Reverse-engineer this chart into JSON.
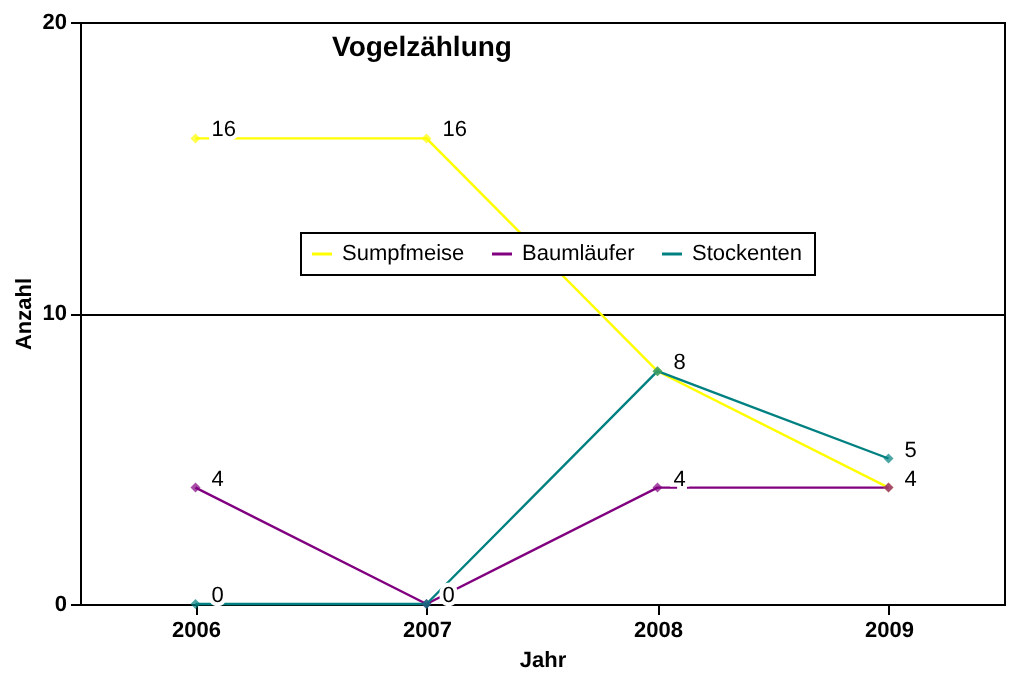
{
  "chart_data": {
    "type": "line",
    "title": "Vogelzählung",
    "xlabel": "Jahr",
    "ylabel": "Anzahl",
    "categories": [
      "2006",
      "2007",
      "2008",
      "2009"
    ],
    "series": [
      {
        "name": "Sumpfmeise",
        "color": "#ffff00",
        "values": [
          16,
          16,
          8,
          4
        ],
        "value_labels": [
          "16",
          "16",
          "8",
          "4"
        ]
      },
      {
        "name": "Baumläufer",
        "color": "#800080",
        "values": [
          4,
          0,
          4,
          4
        ],
        "value_labels": [
          "4",
          "0",
          "4",
          null
        ]
      },
      {
        "name": "Stockenten",
        "color": "#008080",
        "values": [
          0,
          0,
          8,
          5
        ],
        "value_labels": [
          "0",
          null,
          null,
          "5"
        ]
      }
    ],
    "ylim": [
      0,
      20
    ],
    "yticks": [
      0,
      10,
      20
    ],
    "grid": "y",
    "legend": "top",
    "marker": "diamond",
    "line_style": "solid"
  }
}
